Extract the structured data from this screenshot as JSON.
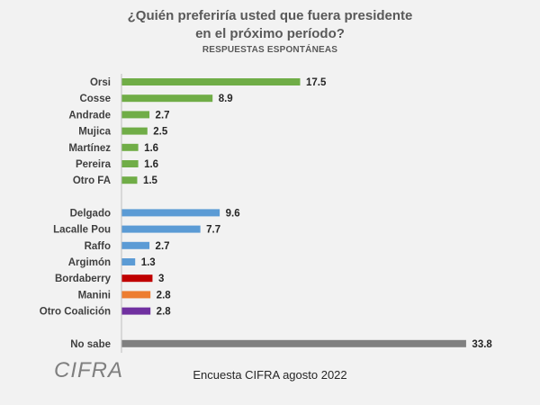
{
  "chart_data": {
    "type": "bar",
    "orientation": "horizontal",
    "title_line1": "¿Quién preferiría usted que fuera presidente",
    "title_line2": "en el próximo período?",
    "subtitle": "RESPUESTAS ESPONTÁNEAS",
    "xlim": [
      0,
      35
    ],
    "grid": false,
    "legend": "none",
    "colors": {
      "fa": "#70ad47",
      "pn": "#5b9bd5",
      "pc": "#c00000",
      "cabildo": "#ed7d31",
      "otro_coalicion": "#7030a0",
      "no_sabe": "#808080"
    },
    "categories": [
      "Orsi",
      "Cosse",
      "Andrade",
      "Mujica",
      "Martínez",
      "Pereira",
      "Otro FA",
      "Delgado",
      "Lacalle Pou",
      "Raffo",
      "Argimón",
      "Bordaberry",
      "Manini",
      "Otro Coalición",
      "No sabe"
    ],
    "values": [
      17.5,
      8.9,
      2.7,
      2.5,
      1.6,
      1.6,
      1.5,
      9.6,
      7.7,
      2.7,
      1.3,
      3,
      2.8,
      2.8,
      33.8
    ],
    "value_labels": [
      "17.5",
      "8.9",
      "2.7",
      "2.5",
      "1.6",
      "1.6",
      "1.5",
      "9.6",
      "7.7",
      "2.7",
      "1.3",
      "3",
      "2.8",
      "2.8",
      "33.8"
    ],
    "groups": [
      "fa",
      "fa",
      "fa",
      "fa",
      "fa",
      "fa",
      "fa",
      "pn",
      "pn",
      "pn",
      "pn",
      "pc",
      "cabildo",
      "otro_coalicion",
      "no_sabe"
    ],
    "gap_before": [
      7,
      14
    ]
  },
  "footer": {
    "source": "Encuesta CIFRA agosto 2022",
    "logo_text": "CIFRA"
  }
}
